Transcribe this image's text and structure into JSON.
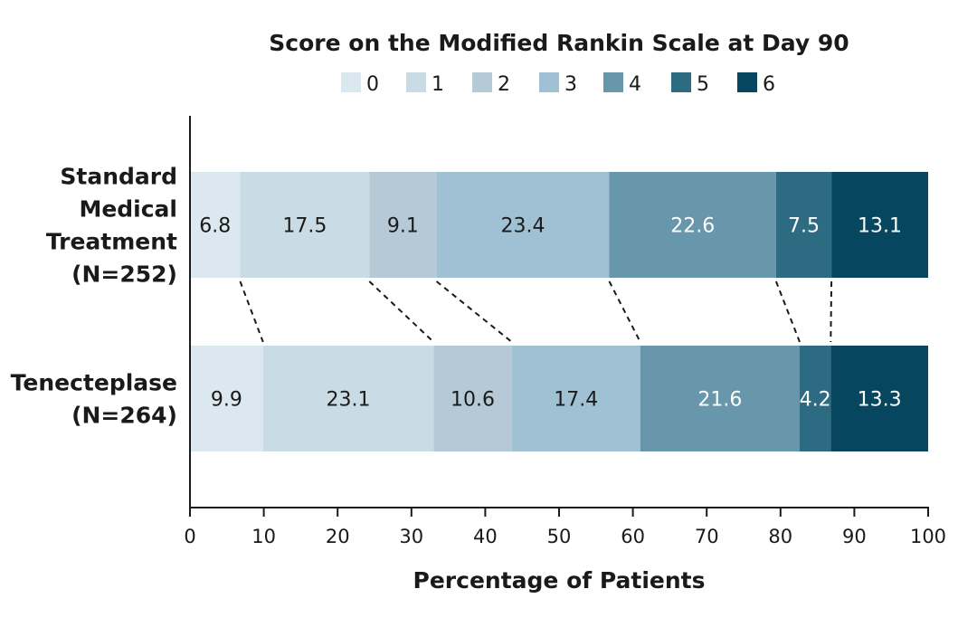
{
  "chart_data": {
    "type": "bar",
    "orientation": "horizontal",
    "stacked": true,
    "title": "Score on the Modified Rankin Scale at Day 90",
    "xlabel": "Percentage of Patients",
    "ylabel": "",
    "xlim": [
      0,
      100
    ],
    "xticks": [
      0,
      10,
      20,
      30,
      40,
      50,
      60,
      70,
      80,
      90,
      100
    ],
    "grid": false,
    "legend_position": "top",
    "categories": [
      [
        "Standard",
        "Medical",
        "Treatment",
        "(N=252)"
      ],
      [
        "Tenecteplase",
        "(N=264)"
      ]
    ],
    "series": [
      {
        "name": "0",
        "color": "#dce8ef",
        "values": [
          6.8,
          9.9
        ]
      },
      {
        "name": "1",
        "color": "#c9dbe4",
        "values": [
          17.5,
          23.1
        ]
      },
      {
        "name": "2",
        "color": "#b5cad6",
        "values": [
          9.1,
          10.6
        ]
      },
      {
        "name": "3",
        "color": "#9fc1d3",
        "values": [
          23.4,
          17.4
        ]
      },
      {
        "name": "4",
        "color": "#6896aa",
        "values": [
          22.6,
          21.6
        ]
      },
      {
        "name": "5",
        "color": "#2d6b82",
        "values": [
          7.5,
          4.2
        ]
      },
      {
        "name": "6",
        "color": "#06475f",
        "values": [
          13.1,
          13.3
        ]
      }
    ],
    "connectors": "dashed lines between adjacent bars at each score boundary"
  }
}
